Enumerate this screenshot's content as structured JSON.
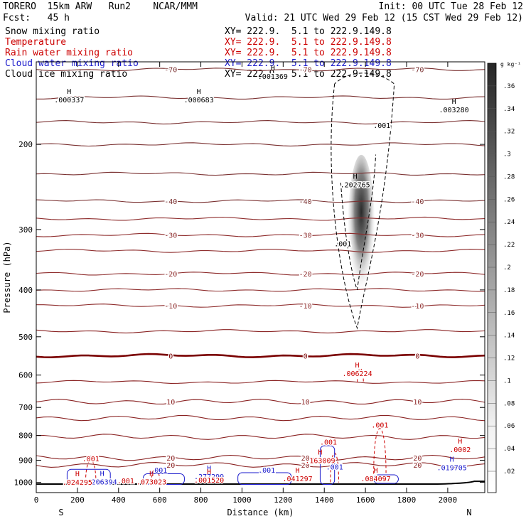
{
  "header": {
    "model": "TORERO  15km ARW   Run2    NCAR/MMM",
    "init": "Init: 00 UTC Tue 28 Feb 12",
    "fcst": "Fcst:   45 h",
    "valid": "Valid: 21 UTC Wed 29 Feb 12 (15 CST Wed 29 Feb 12)"
  },
  "fields": [
    {
      "name": "Snow mixing ratio",
      "color": "#000000",
      "xy": "XY= 222.9.  5.1 to 222.9.149.8"
    },
    {
      "name": "Temperature",
      "color": "#cc0000",
      "xy": "XY= 222.9.  5.1 to 222.9.149.8"
    },
    {
      "name": "Rain water mixing ratio",
      "color": "#cc0000",
      "xy": "XY= 222.9.  5.1 to 222.9.149.8"
    },
    {
      "name": "Cloud water mixing ratio",
      "color": "#1a1acc",
      "xy": "XY= 222.9.  5.1 to 222.9.149.8"
    },
    {
      "name": "Cloud ice mixing ratio",
      "color": "#000000",
      "xy": "XY= 222.9.  5.1 to 222.9.149.8"
    }
  ],
  "chart_data": {
    "type": "contour cross-section",
    "xlabel": "Distance (km)",
    "ylabel": "Pressure (hPa)",
    "xlim": [
      0,
      2180
    ],
    "ylim": [
      1050,
      135
    ],
    "x_ticks": [
      0,
      200,
      400,
      600,
      800,
      1000,
      1200,
      1400,
      1600,
      1800,
      2000
    ],
    "y_ticks": [
      200,
      300,
      400,
      500,
      600,
      700,
      800,
      900,
      1000
    ],
    "end_labels": {
      "left": "S",
      "right": "N"
    },
    "colorbar": {
      "unit": "g kg⁻¹",
      "levels": [
        ".02",
        ".04",
        ".06",
        ".08",
        ".1",
        ".12",
        ".14",
        ".16",
        ".18",
        ".2",
        ".22",
        ".24",
        ".26",
        ".28",
        ".3",
        ".32",
        ".34",
        ".36"
      ]
    },
    "temperature_contours": [
      {
        "level": -70,
        "pressure": 140,
        "label": "-70"
      },
      {
        "level": -60,
        "pressure": 160,
        "label": ""
      },
      {
        "level": -55,
        "pressure": 180,
        "label": ""
      },
      {
        "level": -50,
        "pressure": 200,
        "label": ""
      },
      {
        "level": -45,
        "pressure": 230,
        "label": ""
      },
      {
        "level": -40,
        "pressure": 262,
        "label": "-40"
      },
      {
        "level": -35,
        "pressure": 285,
        "label": ""
      },
      {
        "level": -30,
        "pressure": 308,
        "label": "-30"
      },
      {
        "level": -25,
        "pressure": 332,
        "label": ""
      },
      {
        "level": -20,
        "pressure": 370,
        "label": "-20"
      },
      {
        "level": -15,
        "pressure": 400,
        "label": ""
      },
      {
        "level": -10,
        "pressure": 431,
        "label": "-10"
      },
      {
        "level": -5,
        "pressure": 487,
        "label": ""
      },
      {
        "level": 0,
        "pressure": 547,
        "label": "0"
      },
      {
        "level": 5,
        "pressure": 620,
        "label": ""
      },
      {
        "level": 10,
        "pressure": 681,
        "label": "10"
      },
      {
        "level": 15,
        "pressure": 736,
        "label": ""
      },
      {
        "level": 20,
        "pressure": 805,
        "label": ""
      },
      {
        "level": 20,
        "pressure": 890,
        "label": "20"
      },
      {
        "level": 20,
        "pressure": 920,
        "label": "20"
      }
    ],
    "maxima": [
      {
        "x": 160,
        "p": 162,
        "label": ".000337",
        "color": "#000000"
      },
      {
        "x": 790,
        "p": 162,
        "label": ".000683",
        "color": "#000000"
      },
      {
        "x": 1150,
        "p": 145,
        "label": ".001369",
        "color": "#000000"
      },
      {
        "x": 1550,
        "p": 243,
        "label": ".202765",
        "color": "#000000"
      },
      {
        "x": 2030,
        "p": 170,
        "label": ".003280",
        "color": "#000000"
      },
      {
        "x": 1560,
        "p": 597,
        "label": ".006224",
        "color": "#cc0000"
      },
      {
        "x": 1380,
        "p": 903,
        "label": ".163009",
        "color": "#cc0000"
      },
      {
        "x": 2060,
        "p": 857,
        "label": ".0002",
        "color": "#cc0000"
      },
      {
        "x": 320,
        "p": 1000,
        "label": ".206394",
        "color": "#1a1acc"
      },
      {
        "x": 560,
        "p": 1000,
        "label": ".073023",
        "color": "#cc0000"
      },
      {
        "x": 840,
        "p": 975,
        "label": ".277299",
        "color": "#1a1acc"
      },
      {
        "x": 840,
        "p": 992,
        "label": ".001520",
        "color": "#cc0000"
      },
      {
        "x": 1270,
        "p": 985,
        "label": ".041297",
        "color": "#cc0000"
      },
      {
        "x": 1650,
        "p": 985,
        "label": ".084097",
        "color": "#cc0000"
      },
      {
        "x": 2020,
        "p": 935,
        "label": ".019705",
        "color": "#1a1acc"
      },
      {
        "x": 200,
        "p": 1001,
        "label": ".024295",
        "color": "#cc0000"
      }
    ],
    "contour_labels": [
      {
        "x": 1680,
        "p": 185,
        "label": ".001",
        "color": "#000000"
      },
      {
        "x": 1490,
        "p": 325,
        "label": ".001",
        "color": "#000000"
      },
      {
        "x": 265,
        "p": 905,
        "label": ".001",
        "color": "#cc0000"
      },
      {
        "x": 595,
        "p": 955,
        "label": ".001",
        "color": "#1a1acc"
      },
      {
        "x": 435,
        "p": 1005,
        "label": ".001",
        "color": "#cc0000"
      },
      {
        "x": 1120,
        "p": 955,
        "label": ".001",
        "color": "#1a1acc"
      },
      {
        "x": 1450,
        "p": 940,
        "label": ".001",
        "color": "#1a1acc"
      },
      {
        "x": 1420,
        "p": 835,
        "label": ".001",
        "color": "#cc0000"
      },
      {
        "x": 1670,
        "p": 770,
        "label": ".001",
        "color": "#cc0000"
      }
    ]
  }
}
